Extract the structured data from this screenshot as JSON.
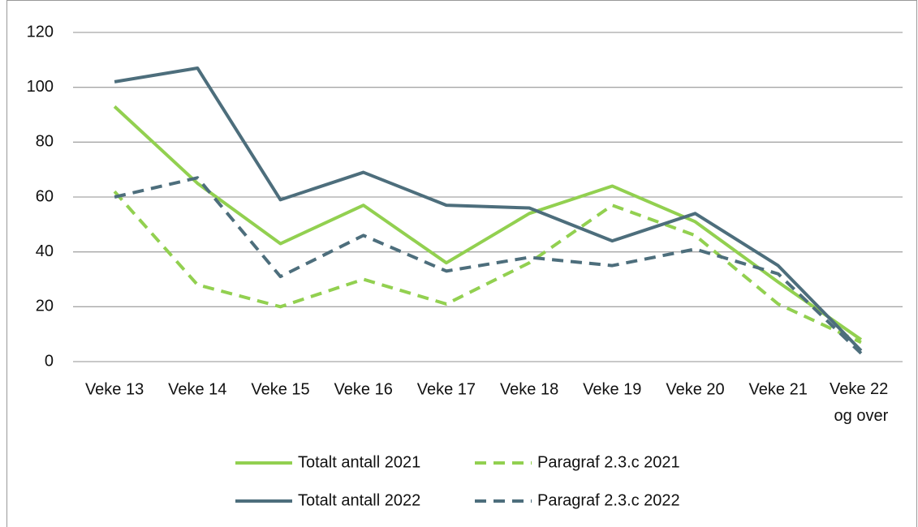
{
  "chart_data": {
    "type": "line",
    "categories": [
      "Veke 13",
      "Veke 14",
      "Veke 15",
      "Veke 16",
      "Veke 17",
      "Veke 18",
      "Veke 19",
      "Veke 20",
      "Veke 21",
      "Veke 22 og over"
    ],
    "series": [
      {
        "name": "Totalt antall 2021",
        "color": "#92d050",
        "style": "solid",
        "values": [
          93,
          65,
          43,
          57,
          36,
          54,
          64,
          51,
          29,
          8
        ]
      },
      {
        "name": "Paragraf 2.3.c 2021",
        "color": "#92d050",
        "style": "dashed",
        "values": [
          62,
          28,
          20,
          30,
          21,
          36,
          57,
          46,
          21,
          7
        ]
      },
      {
        "name": "Totalt antall 2022",
        "color": "#4d6e7c",
        "style": "solid",
        "values": [
          102,
          107,
          59,
          69,
          57,
          56,
          44,
          54,
          35,
          4
        ]
      },
      {
        "name": "Paragraf 2.3.c 2022",
        "color": "#4d6e7c",
        "style": "dashed",
        "values": [
          60,
          67,
          31,
          46,
          33,
          38,
          35,
          41,
          32,
          3
        ]
      }
    ],
    "ylim": [
      0,
      120
    ],
    "yticks": [
      0,
      20,
      40,
      60,
      80,
      100,
      120
    ],
    "grid": true,
    "legend": "bottom"
  }
}
